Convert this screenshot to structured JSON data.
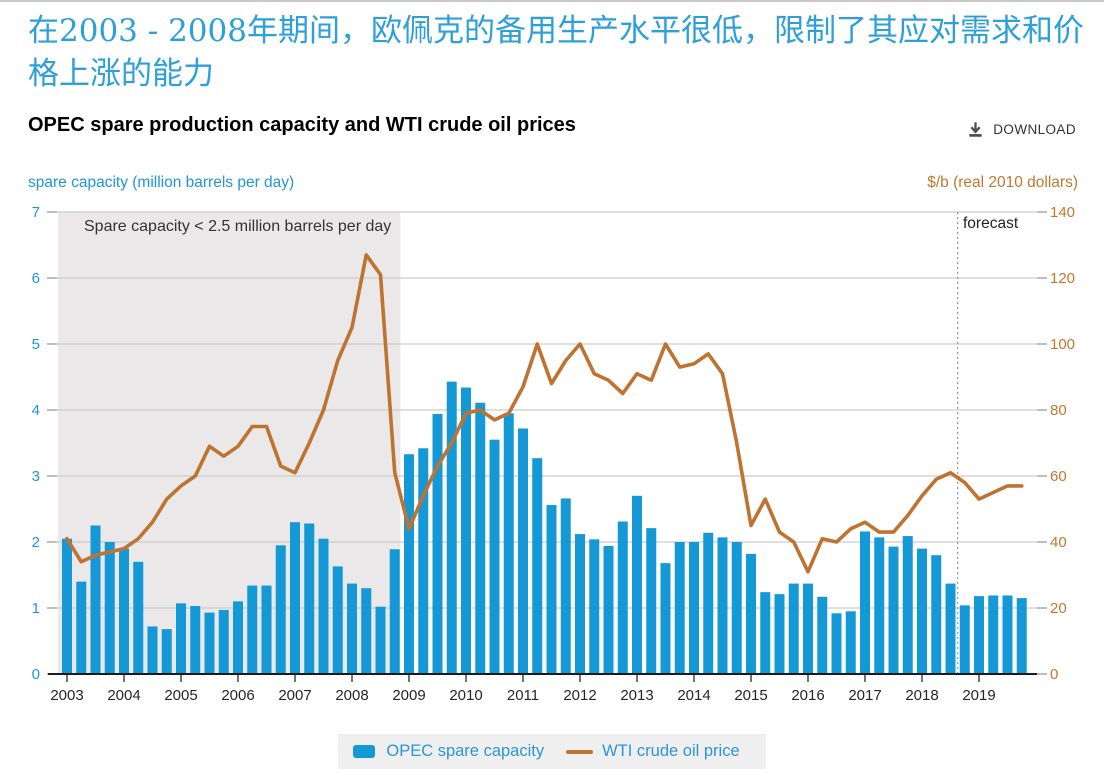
{
  "page": {
    "heading_cn": "在2003 - 2008年期间，欧佩克的备用生产水平很低，限制了其应对需求和价格上涨的能力",
    "chart_title": "OPEC spare production capacity and WTI crude oil prices",
    "download_label": "DOWNLOAD"
  },
  "chart_data": {
    "type": "bar",
    "subtype": "bar+line dual axis, quarterly",
    "x": {
      "years": [
        2003,
        2004,
        2005,
        2006,
        2007,
        2008,
        2009,
        2010,
        2011,
        2012,
        2013,
        2014,
        2015,
        2016,
        2017,
        2018,
        2019
      ],
      "points_per_year": 4
    },
    "left_axis": {
      "label": "spare capacity (million barrels per day)",
      "min": 0,
      "max": 7,
      "step": 1,
      "color": "#2196d5"
    },
    "right_axis": {
      "label": "$/b (real 2010 dollars)",
      "min": 0,
      "max": 140,
      "step": 20,
      "color": "#c0782f"
    },
    "grid": "horizontal",
    "annotation": {
      "text": "Spare capacity < 2.5 million barrels per day"
    },
    "forecast": {
      "label": "forecast",
      "starts_after": "2018 Q3"
    },
    "shaded_region": {
      "from": "2003 Q1",
      "to": "2008 Q4",
      "color": "#eae8e8"
    },
    "axis_text_color": "#262626",
    "series": [
      {
        "name": "OPEC spare capacity",
        "type": "bar",
        "axis": "left",
        "color": "#1598d6",
        "values": [
          2.05,
          1.4,
          2.25,
          2.0,
          1.9,
          1.7,
          0.72,
          0.68,
          1.07,
          1.03,
          0.93,
          0.97,
          1.1,
          1.34,
          1.34,
          1.95,
          2.3,
          2.28,
          2.05,
          1.63,
          1.37,
          1.3,
          1.02,
          1.89,
          3.33,
          3.42,
          3.94,
          4.43,
          4.34,
          4.11,
          3.55,
          3.95,
          3.72,
          3.27,
          2.56,
          2.66,
          2.12,
          2.04,
          1.94,
          2.31,
          2.7,
          2.21,
          1.68,
          2.0,
          2.0,
          2.14,
          2.07,
          2.0,
          1.82,
          1.24,
          1.21,
          1.37,
          1.37,
          1.17,
          0.92,
          0.95,
          2.16,
          2.07,
          1.93,
          2.09,
          1.9,
          1.8,
          1.37,
          1.04,
          1.18,
          1.19,
          1.19,
          1.15
        ]
      },
      {
        "name": "WTI crude oil price",
        "type": "line",
        "axis": "right",
        "color": "#bf7330",
        "values": [
          41,
          34,
          36,
          37,
          38,
          41,
          46,
          53,
          57,
          60,
          69,
          66,
          69,
          75,
          75,
          63,
          61,
          70,
          80,
          95,
          105,
          127,
          121,
          61,
          44,
          54,
          63,
          70,
          79,
          80,
          77,
          79,
          87,
          100,
          88,
          95,
          100,
          91,
          89,
          85,
          91,
          89,
          100,
          93,
          94,
          97,
          91,
          70,
          45,
          53,
          43,
          40,
          31,
          41,
          40,
          44,
          46,
          43,
          43,
          48,
          54,
          59,
          61,
          58,
          53,
          55,
          57,
          57
        ]
      }
    ]
  }
}
